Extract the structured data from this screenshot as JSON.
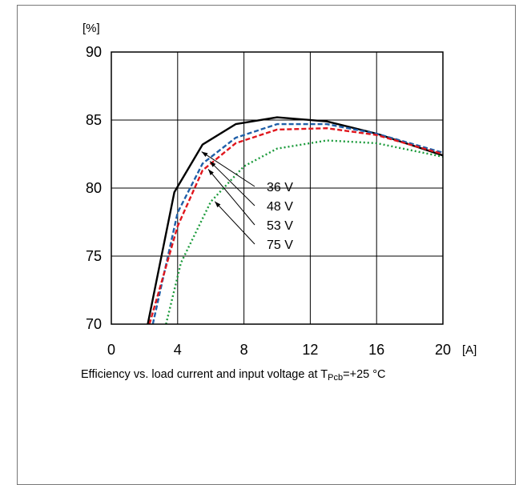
{
  "chart_data": {
    "type": "line",
    "title": "",
    "caption": {
      "prefix": "Efficiency vs. load current and input voltage at T",
      "subscript": "Pcb",
      "suffix": "=+25 °C"
    },
    "xlabel": "[A]",
    "ylabel": "[%]",
    "xlim": [
      0,
      20
    ],
    "ylim": [
      70,
      90
    ],
    "xticks": [
      "0",
      "4",
      "8",
      "12",
      "16",
      "20"
    ],
    "yticks": [
      "70",
      "75",
      "80",
      "85",
      "90"
    ],
    "grid": true,
    "series": [
      {
        "name": "36 V",
        "color": "#000000",
        "dash": "solid",
        "x": [
          2.2,
          3.8,
          5.5,
          7.5,
          10,
          13,
          16,
          20
        ],
        "y": [
          70,
          79.7,
          83.2,
          84.7,
          85.2,
          84.9,
          84.0,
          82.4
        ]
      },
      {
        "name": "48 V",
        "color": "#1f5fa8",
        "dash": "dashed",
        "x": [
          2.5,
          4.0,
          5.5,
          7.5,
          10,
          13,
          16,
          20
        ],
        "y": [
          70,
          78.2,
          81.8,
          83.7,
          84.7,
          84.7,
          84.0,
          82.6
        ]
      },
      {
        "name": "53 V",
        "color": "#e0161d",
        "dash": "dashed",
        "x": [
          2.3,
          4.0,
          5.5,
          7.5,
          10,
          13,
          16,
          20
        ],
        "y": [
          70,
          77.2,
          81.3,
          83.3,
          84.3,
          84.4,
          83.9,
          82.5
        ]
      },
      {
        "name": "75 V",
        "color": "#1a9a3a",
        "dash": "dotted",
        "x": [
          3.3,
          4.2,
          6.0,
          8.0,
          10,
          13,
          16,
          20
        ],
        "y": [
          70,
          74.5,
          79.0,
          81.6,
          82.9,
          83.5,
          83.3,
          82.3
        ]
      }
    ]
  }
}
